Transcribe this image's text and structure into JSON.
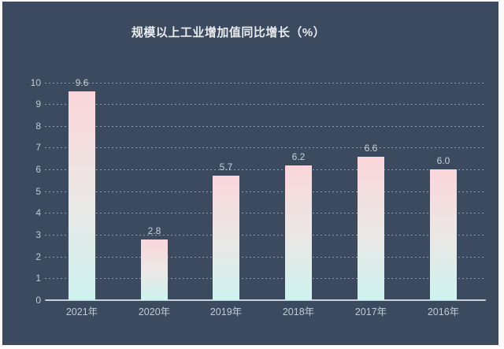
{
  "title": "规模以上工业增加值同比增长（%）",
  "colors": {
    "background": "#3b4a5f",
    "frame": "#fbfbfc",
    "title_text": "#e9ecef",
    "axis_label": "#c3cad3",
    "data_label": "#c9d0d8",
    "gridline": "#aeb6c2",
    "axis_line": "#c9cfd6",
    "bar_top": "#fbd6db",
    "bar_mid": "#eae9e7",
    "bar_bottom": "#cdf2ee"
  },
  "chart_data": {
    "type": "bar",
    "title": "规模以上工业增加值同比增长（%）",
    "categories": [
      "2021年",
      "2020年",
      "2019年",
      "2018年",
      "2017年",
      "2016年"
    ],
    "values": [
      9.6,
      2.8,
      5.7,
      6.2,
      6.6,
      6.0
    ],
    "data_labels": [
      "9.6",
      "2.8",
      "5.7",
      "6.2",
      "6.6",
      "6.0"
    ],
    "xlabel": "",
    "ylabel": "",
    "ylim": [
      0,
      10
    ],
    "ytick_step": 1,
    "yticks": [
      "0",
      "1",
      "2",
      "3",
      "4",
      "5",
      "6",
      "7",
      "8",
      "9",
      "10"
    ],
    "grid": "dotted-horizontal",
    "legend": "none",
    "bar_label_position": "top"
  }
}
